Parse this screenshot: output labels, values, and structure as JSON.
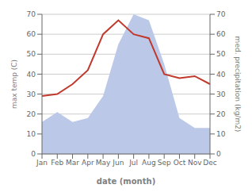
{
  "chart_data": {
    "type": "line",
    "categories": [
      "Jan",
      "Feb",
      "Mar",
      "Apr",
      "May",
      "Jun",
      "Jul",
      "Aug",
      "Sep",
      "Oct",
      "Nov",
      "Dec"
    ],
    "series": [
      {
        "type": "area",
        "axis": "y2",
        "color": "#bbc8e8",
        "values": [
          16,
          21,
          16,
          18,
          29,
          55,
          70,
          67,
          45,
          18,
          13,
          13
        ]
      },
      {
        "type": "line",
        "color": "#c0392b",
        "values": [
          29,
          30,
          35,
          42,
          60,
          67,
          60,
          58,
          40,
          38,
          39,
          35
        ]
      }
    ],
    "xlabel": "date (month)",
    "ylabel": "max temp (C)",
    "y2label": "med. precipitation (kg/m2)",
    "ylim": [
      0,
      70
    ],
    "yticks": [
      0,
      10,
      20,
      30,
      40,
      50,
      60,
      70
    ],
    "y2lim": [
      0,
      70
    ],
    "y2ticks": [
      0,
      10,
      20,
      30,
      40,
      50,
      60,
      70
    ],
    "grid": true
  }
}
